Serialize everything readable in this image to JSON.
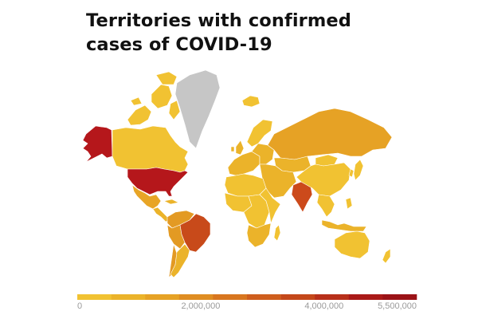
{
  "title": {
    "line1": "Territories with confirmed",
    "line2": "cases of COVID-19"
  },
  "legend": {
    "colors": [
      "#f1c232",
      "#ebb32a",
      "#e6a225",
      "#df8d22",
      "#d8761f",
      "#cf5e1d",
      "#c4481a",
      "#b8301a",
      "#aa1a18",
      "#9b1217"
    ],
    "labels": [
      "0",
      "2,000,000",
      "4,000,000",
      "5,500,000"
    ],
    "label_values": [
      0,
      2000000,
      4000000,
      5500000
    ],
    "max": 5500000
  },
  "map": {
    "no_data_color": "#c6c6c6",
    "regions": [
      {
        "name": "alaska",
        "color": "#b5171b"
      },
      {
        "name": "canada",
        "color": "#f1c232"
      },
      {
        "name": "canadian-arctic",
        "color": "#f1c232"
      },
      {
        "name": "greenland",
        "color": "#c6c6c6"
      },
      {
        "name": "iceland",
        "color": "#f1c232"
      },
      {
        "name": "usa",
        "color": "#b5171b"
      },
      {
        "name": "mexico",
        "color": "#e8a526"
      },
      {
        "name": "central-america",
        "color": "#ebb32a"
      },
      {
        "name": "colombia-venezuela",
        "color": "#e39a23"
      },
      {
        "name": "peru",
        "color": "#e39a23"
      },
      {
        "name": "brazil",
        "color": "#c84a1a"
      },
      {
        "name": "chile",
        "color": "#e39a23"
      },
      {
        "name": "argentina",
        "color": "#ebb32a"
      },
      {
        "name": "western-europe",
        "color": "#ebb32a"
      },
      {
        "name": "uk",
        "color": "#ebb32a"
      },
      {
        "name": "scandinavia",
        "color": "#f1c232"
      },
      {
        "name": "eastern-europe",
        "color": "#ebb32a"
      },
      {
        "name": "russia",
        "color": "#e6a225"
      },
      {
        "name": "kazakhstan",
        "color": "#ebb32a"
      },
      {
        "name": "middle-east",
        "color": "#ebb32a"
      },
      {
        "name": "north-africa",
        "color": "#f1c232"
      },
      {
        "name": "west-africa",
        "color": "#f1c232"
      },
      {
        "name": "central-africa",
        "color": "#f1c232"
      },
      {
        "name": "east-africa",
        "color": "#f1c232"
      },
      {
        "name": "southern-africa",
        "color": "#ebb32a"
      },
      {
        "name": "madagascar",
        "color": "#f1c232"
      },
      {
        "name": "india",
        "color": "#cc4a1b"
      },
      {
        "name": "china",
        "color": "#f1c232"
      },
      {
        "name": "mongolia",
        "color": "#f1c232"
      },
      {
        "name": "southeast-asia",
        "color": "#f1c232"
      },
      {
        "name": "japan",
        "color": "#f1c232"
      },
      {
        "name": "indonesia",
        "color": "#ebb32a"
      },
      {
        "name": "philippines",
        "color": "#f1c232"
      },
      {
        "name": "australia",
        "color": "#f1c232"
      },
      {
        "name": "new-zealand",
        "color": "#f1c232"
      }
    ]
  }
}
